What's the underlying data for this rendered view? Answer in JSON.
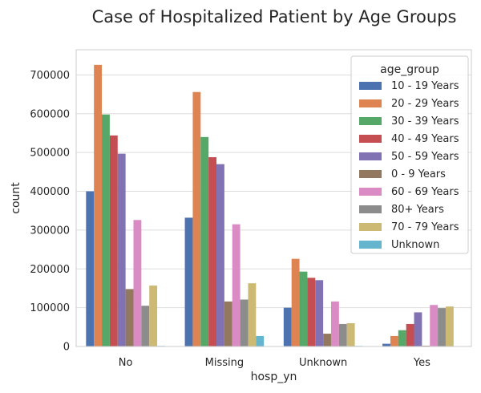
{
  "chart_data": {
    "type": "bar",
    "title": "Case of Hospitalized Patient by Age Groups",
    "xlabel": "hosp_yn",
    "ylabel": "count",
    "categories": [
      "No",
      "Missing",
      "Unknown",
      "Yes"
    ],
    "ylim": [
      0,
      765000
    ],
    "yticks": [
      0,
      100000,
      200000,
      300000,
      400000,
      500000,
      600000,
      700000
    ],
    "ytick_labels": [
      "0",
      "100000",
      "200000",
      "300000",
      "400000",
      "500000",
      "600000",
      "700000"
    ],
    "grid": true,
    "legend": {
      "title": "age_group",
      "placement": "top-right"
    },
    "series": [
      {
        "name": "10 - 19 Years",
        "color": "#4c72b0",
        "values": [
          400000,
          332000,
          100000,
          7000
        ]
      },
      {
        "name": "20 - 29 Years",
        "color": "#dd8452",
        "values": [
          726000,
          656000,
          226000,
          27000
        ]
      },
      {
        "name": "30 - 39 Years",
        "color": "#55a868",
        "values": [
          598000,
          540000,
          193000,
          42000
        ]
      },
      {
        "name": "40 - 49 Years",
        "color": "#c44e52",
        "values": [
          544000,
          488000,
          177000,
          58000
        ]
      },
      {
        "name": "50 - 59 Years",
        "color": "#8172b3",
        "values": [
          497000,
          470000,
          171000,
          88000
        ]
      },
      {
        "name": "0 - 9 Years",
        "color": "#937860",
        "values": [
          148000,
          116000,
          33000,
          2000
        ]
      },
      {
        "name": "60 - 69 Years",
        "color": "#da8bc3",
        "values": [
          326000,
          315000,
          116000,
          107000
        ]
      },
      {
        "name": "80+ Years",
        "color": "#8c8c8c",
        "values": [
          105000,
          121000,
          58000,
          99000
        ]
      },
      {
        "name": "70 - 79 Years",
        "color": "#ccb974",
        "values": [
          157000,
          163000,
          60000,
          103000
        ]
      },
      {
        "name": "Unknown",
        "color": "#64b5cd",
        "values": [
          1500,
          27000,
          1500,
          500
        ]
      }
    ]
  }
}
